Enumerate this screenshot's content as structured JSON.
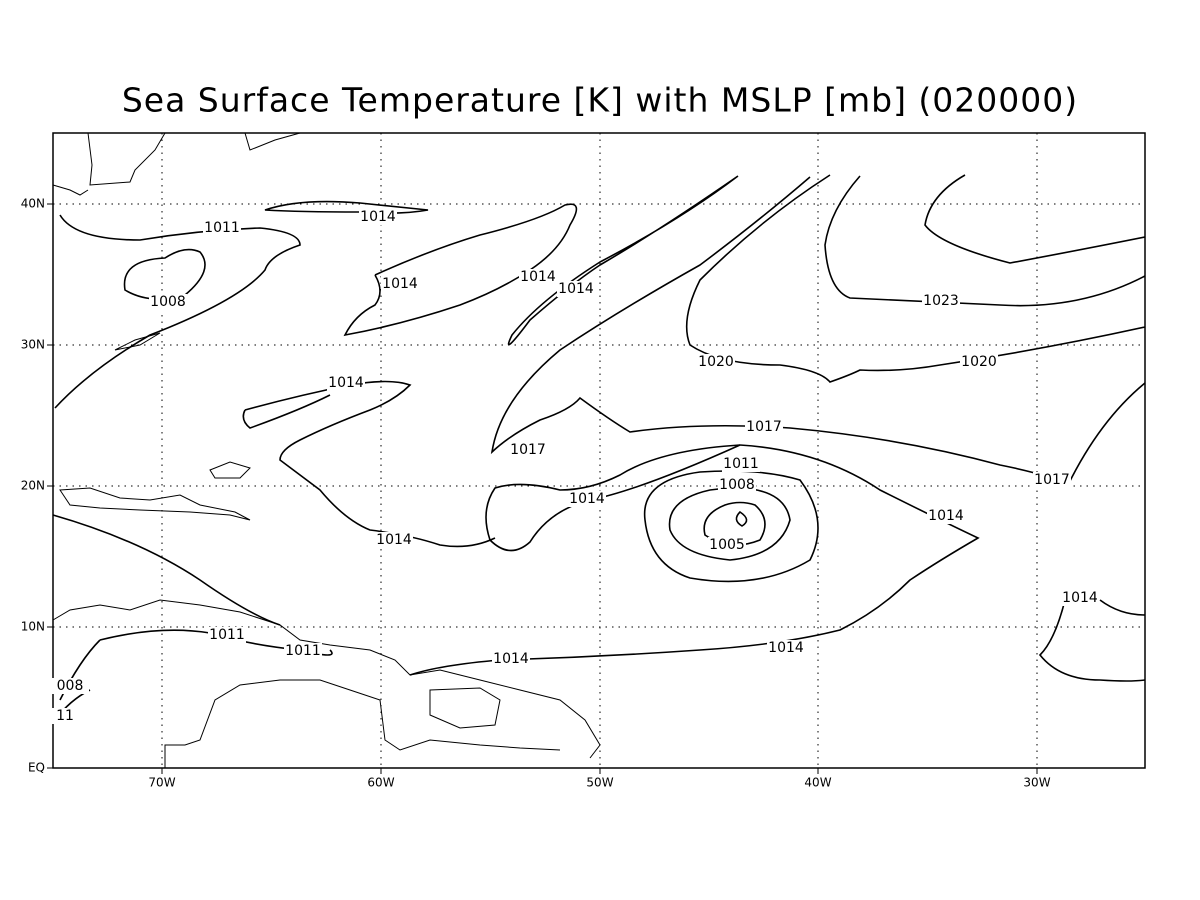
{
  "title": "Sea Surface Temperature [K] with MSLP [mb] (020000)",
  "lon_ticks": [
    "70W",
    "60W",
    "50W",
    "40W",
    "30W"
  ],
  "lat_ticks": [
    "EQ",
    "10N",
    "20N",
    "30N",
    "40N"
  ],
  "contour_labels": [
    "1011",
    "1014",
    "1008",
    "1014",
    "1014",
    "1014",
    "1020",
    "1023",
    "1020",
    "1014",
    "1017",
    "1017",
    "1017",
    "1011",
    "1008",
    "1014",
    "1014",
    "1005",
    "1014",
    "1014",
    "1011",
    "1011",
    "1014",
    "1014",
    "008",
    "11"
  ]
}
